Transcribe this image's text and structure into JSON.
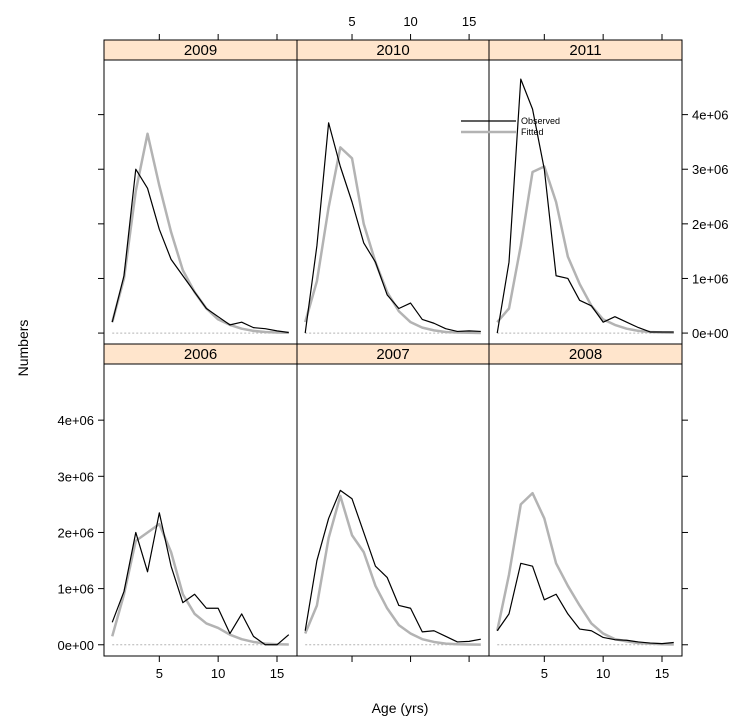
{
  "chart_data": {
    "type": "line",
    "xlabel": "Age (yrs)",
    "ylabel": "Numbers",
    "xlim": [
      0.3,
      16.7
    ],
    "ylim": [
      -200000,
      5000000
    ],
    "x_ticks": [
      5,
      10,
      15
    ],
    "x_tick_labels": [
      "5",
      "10",
      "15"
    ],
    "y_ticks": [
      0,
      1000000,
      2000000,
      3000000,
      4000000
    ],
    "y_tick_labels": [
      "0e+00",
      "1e+06",
      "2e+06",
      "3e+06",
      "4e+06"
    ],
    "legend": {
      "entries": [
        "Observed",
        "Fitted"
      ],
      "placement": "top-right of 2010 panel"
    },
    "series_styles": {
      "Observed": "#000000",
      "Fitted": "#b3b3b3"
    },
    "strip_color": "#ffe5cc",
    "panels": [
      {
        "title": "2009",
        "x": [
          1,
          2,
          3,
          4,
          5,
          6,
          7,
          8,
          9,
          10,
          11,
          12,
          13,
          14,
          15,
          16
        ],
        "observed": [
          200000,
          1050000,
          3000000,
          2650000,
          1900000,
          1350000,
          1050000,
          750000,
          450000,
          300000,
          150000,
          200000,
          100000,
          80000,
          40000,
          10000
        ],
        "fitted": [
          200000,
          1000000,
          2600000,
          3650000,
          2700000,
          1850000,
          1150000,
          750000,
          450000,
          250000,
          150000,
          80000,
          40000,
          20000,
          10000,
          5000
        ]
      },
      {
        "title": "2010",
        "x": [
          1,
          2,
          3,
          4,
          5,
          6,
          7,
          8,
          9,
          10,
          11,
          12,
          13,
          14,
          15,
          16
        ],
        "observed": [
          0,
          1600000,
          3850000,
          3050000,
          2400000,
          1650000,
          1300000,
          700000,
          450000,
          550000,
          250000,
          180000,
          80000,
          30000,
          40000,
          30000
        ],
        "fitted": [
          200000,
          950000,
          2300000,
          3400000,
          3200000,
          2000000,
          1300000,
          750000,
          400000,
          200000,
          100000,
          50000,
          20000,
          10000,
          5000,
          2000
        ]
      },
      {
        "title": "2011",
        "x": [
          1,
          2,
          3,
          4,
          5,
          6,
          7,
          8,
          9,
          10,
          11,
          12,
          13,
          14,
          15,
          16
        ],
        "observed": [
          0,
          1300000,
          4650000,
          4100000,
          3000000,
          1050000,
          1000000,
          600000,
          500000,
          200000,
          300000,
          200000,
          100000,
          20000,
          20000,
          20000
        ],
        "fitted": [
          200000,
          450000,
          1600000,
          2950000,
          3050000,
          2400000,
          1400000,
          900000,
          500000,
          250000,
          150000,
          80000,
          40000,
          20000,
          10000,
          5000
        ]
      },
      {
        "title": "2006",
        "x": [
          1,
          2,
          3,
          4,
          5,
          6,
          7,
          8,
          9,
          10,
          11,
          12,
          13,
          14,
          15,
          16
        ],
        "observed": [
          400000,
          950000,
          2000000,
          1300000,
          2350000,
          1400000,
          750000,
          900000,
          650000,
          650000,
          200000,
          550000,
          150000,
          0,
          0,
          180000
        ],
        "fitted": [
          150000,
          900000,
          1850000,
          2000000,
          2150000,
          1650000,
          900000,
          550000,
          380000,
          300000,
          180000,
          100000,
          50000,
          20000,
          10000,
          5000
        ]
      },
      {
        "title": "2007",
        "x": [
          1,
          2,
          3,
          4,
          5,
          6,
          7,
          8,
          9,
          10,
          11,
          12,
          13,
          14,
          15,
          16
        ],
        "observed": [
          250000,
          1500000,
          2250000,
          2750000,
          2600000,
          2000000,
          1400000,
          1200000,
          700000,
          650000,
          230000,
          250000,
          150000,
          50000,
          60000,
          100000
        ],
        "fitted": [
          200000,
          700000,
          1900000,
          2650000,
          1950000,
          1650000,
          1050000,
          650000,
          350000,
          200000,
          100000,
          50000,
          20000,
          10000,
          5000,
          2000
        ]
      },
      {
        "title": "2008",
        "x": [
          1,
          2,
          3,
          4,
          5,
          6,
          7,
          8,
          9,
          10,
          11,
          12,
          13,
          14,
          15,
          16
        ],
        "observed": [
          250000,
          550000,
          1450000,
          1400000,
          800000,
          900000,
          550000,
          280000,
          250000,
          130000,
          90000,
          80000,
          50000,
          30000,
          20000,
          40000
        ],
        "fitted": [
          250000,
          1250000,
          2500000,
          2700000,
          2250000,
          1450000,
          1050000,
          700000,
          380000,
          200000,
          100000,
          60000,
          30000,
          20000,
          10000,
          5000
        ]
      }
    ]
  }
}
